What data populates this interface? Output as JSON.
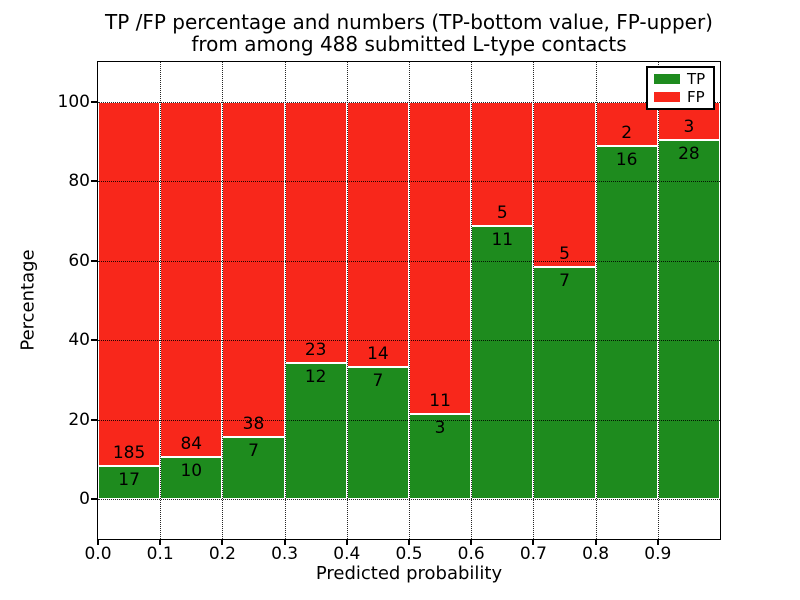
{
  "title": {
    "line1": "TP /FP percentage and numbers (TP-bottom value, FP-upper)",
    "line2": "from among 488 submitted L-type contacts"
  },
  "axes": {
    "xlabel": "Predicted probability",
    "ylabel": "Percentage",
    "xtick_labels": [
      "0.0",
      "0.1",
      "0.2",
      "0.3",
      "0.4",
      "0.5",
      "0.6",
      "0.7",
      "0.8",
      "0.9"
    ],
    "ytick_labels": [
      "0",
      "20",
      "40",
      "60",
      "80",
      "100"
    ],
    "ytick_values": [
      0,
      20,
      40,
      60,
      80,
      100
    ]
  },
  "legend": {
    "entries": [
      {
        "label": "TP",
        "color": "#1e8b1e"
      },
      {
        "label": "FP",
        "color": "#f8271b"
      }
    ]
  },
  "chart_data": {
    "type": "bar",
    "stacked": true,
    "normalized": "each bin stacks to 100%",
    "title": "TP /FP percentage and numbers (TP-bottom value, FP-upper) from among 488 submitted L-type contacts",
    "xlabel": "Predicted probability",
    "ylabel": "Percentage",
    "total_contacts": 488,
    "bin_edges": [
      0.0,
      0.1,
      0.2,
      0.3,
      0.4,
      0.5,
      0.6,
      0.7,
      0.8,
      0.9,
      1.0
    ],
    "series": [
      {
        "name": "TP",
        "color": "#1e8b1e",
        "counts": [
          17,
          10,
          7,
          12,
          7,
          3,
          11,
          7,
          16,
          28
        ]
      },
      {
        "name": "FP",
        "color": "#f8271b",
        "counts": [
          185,
          84,
          38,
          23,
          14,
          11,
          5,
          5,
          2,
          3
        ]
      }
    ],
    "tp_percent": [
      8.4,
      10.6,
      15.6,
      34.3,
      33.3,
      21.4,
      68.8,
      58.3,
      88.9,
      90.3
    ],
    "xlim": [
      0.0,
      1.0
    ],
    "ylim": [
      -10,
      110
    ],
    "grid": true,
    "grid_style": "dotted",
    "legend_position": "upper right"
  }
}
